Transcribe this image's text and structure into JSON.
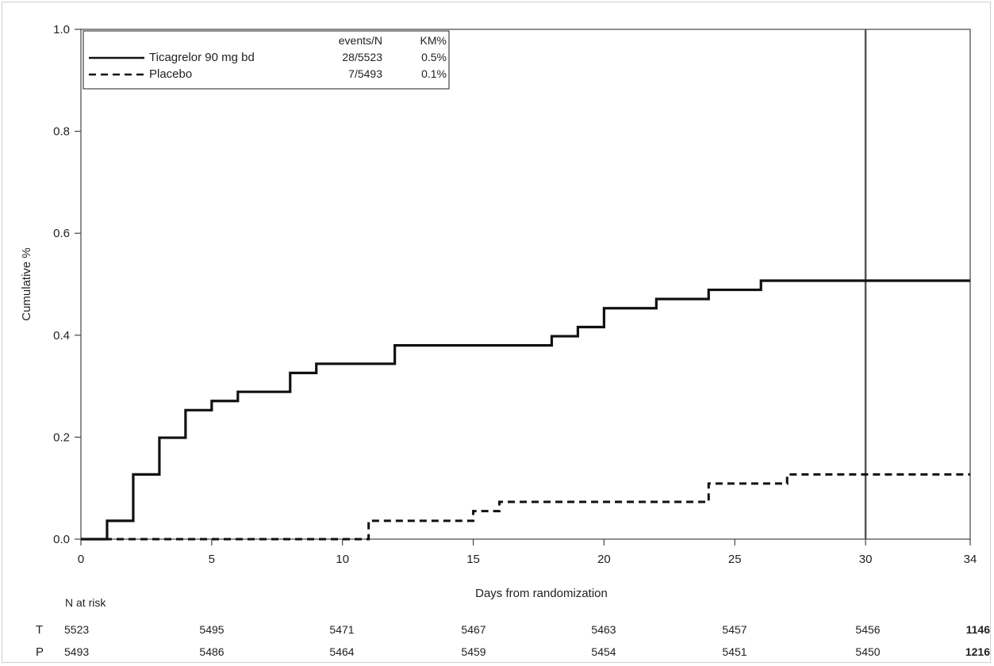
{
  "chart_data": {
    "type": "line",
    "step": true,
    "xlabel": "Days from randomization",
    "ylabel": "Cumulative %",
    "xlim": [
      0,
      34
    ],
    "ylim": [
      0,
      1.0
    ],
    "xticks": [
      {
        "value": 0,
        "label": "0"
      },
      {
        "value": 5,
        "label": "5"
      },
      {
        "value": 10,
        "label": "10"
      },
      {
        "value": 15,
        "label": "15"
      },
      {
        "value": 20,
        "label": "20"
      },
      {
        "value": 25,
        "label": "25"
      },
      {
        "value": 30,
        "label": "30"
      },
      {
        "value": 34,
        "label": "34"
      }
    ],
    "yticks": [
      {
        "value": 0.0,
        "label": "0.0"
      },
      {
        "value": 0.2,
        "label": "0.2"
      },
      {
        "value": 0.4,
        "label": "0.4"
      },
      {
        "value": 0.6,
        "label": "0.6"
      },
      {
        "value": 0.8,
        "label": "0.8"
      },
      {
        "value": 1.0,
        "label": "1.0"
      }
    ],
    "grid": false,
    "reference_line_x": 30,
    "legend": {
      "position": "top-left",
      "col_headers": [
        "events/N",
        "KM%"
      ],
      "entries": [
        {
          "name": "Ticagrelor 90 mg bd",
          "events": "28/5523",
          "km": "0.5%",
          "style": "solid"
        },
        {
          "name": "Placebo",
          "events": "7/5493",
          "km": "0.1%",
          "style": "dashed"
        }
      ]
    },
    "series": [
      {
        "name": "Ticagrelor 90 mg bd",
        "style": "solid",
        "x": [
          0,
          1,
          2,
          3,
          4,
          5,
          6,
          8,
          9,
          12,
          18,
          19,
          20,
          22,
          24,
          26,
          34
        ],
        "y": [
          0.0,
          0.036,
          0.127,
          0.199,
          0.253,
          0.271,
          0.289,
          0.326,
          0.344,
          0.38,
          0.398,
          0.416,
          0.453,
          0.471,
          0.489,
          0.507,
          0.507
        ]
      },
      {
        "name": "Placebo",
        "style": "dashed",
        "x": [
          0,
          11,
          15,
          16,
          24,
          27,
          34
        ],
        "y": [
          0.0,
          0.036,
          0.055,
          0.073,
          0.109,
          0.127,
          0.127
        ]
      }
    ],
    "risk_table": {
      "title": "N at risk",
      "rows": [
        {
          "label": "T",
          "values": [
            "5523",
            "5495",
            "5471",
            "5467",
            "5463",
            "5457",
            "5456",
            "1146"
          ]
        },
        {
          "label": "P",
          "values": [
            "5493",
            "5486",
            "5464",
            "5459",
            "5454",
            "5451",
            "5450",
            "1216"
          ]
        }
      ]
    }
  }
}
